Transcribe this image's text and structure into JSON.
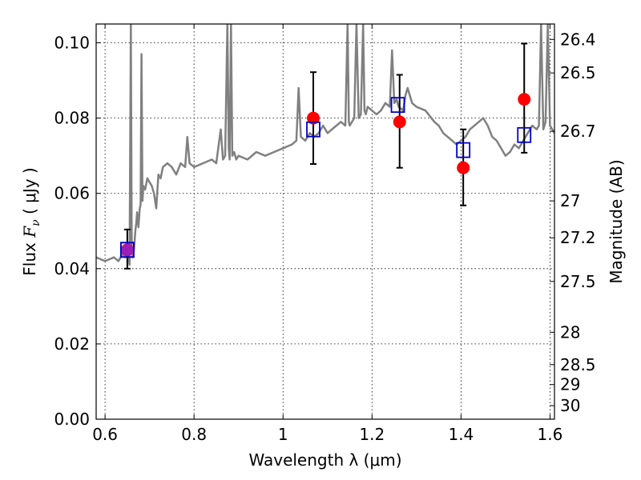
{
  "chart_data": {
    "type": "scatter",
    "title": "",
    "xlabel": "Wavelength  λ (μm)",
    "ylabel": "Flux  F_ν  ( μJy )",
    "ylabel_parts": {
      "pre": "Flux  ",
      "var": "F",
      "sub": "ν",
      "post": "  ( μJy )"
    },
    "y2label": "Magnitude (AB)",
    "xlim": [
      0.58,
      1.61
    ],
    "ylim": [
      0.0,
      0.105
    ],
    "grid": true,
    "x_ticks": [
      0.6,
      0.8,
      1.0,
      1.2,
      1.4,
      1.6
    ],
    "x_tick_labels": [
      "0.6",
      "0.8",
      "1",
      "1.2",
      "1.4",
      "1.6"
    ],
    "y_ticks": [
      0.0,
      0.02,
      0.04,
      0.06,
      0.08,
      0.1
    ],
    "y_tick_labels": [
      "0.00",
      "0.02",
      "0.04",
      "0.06",
      "0.08",
      "0.10"
    ],
    "y2_ticks": [
      {
        "label": "26.4",
        "flux": 0.1009
      },
      {
        "label": "26.5",
        "flux": 0.092
      },
      {
        "label": "26.7",
        "flux": 0.0765
      },
      {
        "label": "27",
        "flux": 0.058
      },
      {
        "label": "27.2",
        "flux": 0.0482
      },
      {
        "label": "27.5",
        "flux": 0.0366
      },
      {
        "label": "28",
        "flux": 0.0231
      },
      {
        "label": "28.5",
        "flux": 0.0145
      },
      {
        "label": "29",
        "flux": 0.0092
      },
      {
        "label": "30",
        "flux": 0.0036
      }
    ],
    "colors": {
      "spectrum": "#808080",
      "observed": "#ff0000",
      "model_box": "#0000cc",
      "error_bar": "#000000"
    },
    "series": [
      {
        "kind": "spectrum",
        "x": [
          0.58,
          0.6,
          0.62,
          0.63,
          0.64,
          0.645,
          0.65,
          0.655,
          0.658,
          0.66,
          0.662,
          0.665,
          0.668,
          0.67,
          0.672,
          0.675,
          0.678,
          0.68,
          0.682,
          0.684,
          0.686,
          0.69,
          0.695,
          0.7,
          0.705,
          0.71,
          0.715,
          0.72,
          0.725,
          0.73,
          0.74,
          0.75,
          0.76,
          0.77,
          0.78,
          0.785,
          0.79,
          0.8,
          0.82,
          0.84,
          0.85,
          0.86,
          0.865,
          0.87,
          0.875,
          0.878,
          0.88,
          0.883,
          0.886,
          0.89,
          0.895,
          0.9,
          0.92,
          0.94,
          0.96,
          0.98,
          1.0,
          1.02,
          1.03,
          1.035,
          1.04,
          1.05,
          1.06,
          1.07,
          1.08,
          1.09,
          1.095,
          1.1,
          1.11,
          1.12,
          1.13,
          1.14,
          1.145,
          1.148,
          1.15,
          1.155,
          1.16,
          1.165,
          1.17,
          1.175,
          1.18,
          1.183,
          1.186,
          1.19,
          1.2,
          1.21,
          1.22,
          1.23,
          1.24,
          1.245,
          1.25,
          1.255,
          1.26,
          1.27,
          1.275,
          1.28,
          1.29,
          1.3,
          1.32,
          1.34,
          1.35,
          1.36,
          1.37,
          1.38,
          1.39,
          1.4,
          1.41,
          1.42,
          1.44,
          1.45,
          1.46,
          1.47,
          1.48,
          1.49,
          1.5,
          1.51,
          1.52,
          1.53,
          1.54,
          1.55,
          1.56,
          1.57,
          1.575,
          1.58,
          1.585,
          1.59,
          1.595,
          1.6,
          1.605,
          1.61
        ],
        "y": [
          0.043,
          0.042,
          0.043,
          0.042,
          0.044,
          0.043,
          0.045,
          0.041,
          0.105,
          0.046,
          0.043,
          0.045,
          0.05,
          0.052,
          0.055,
          0.051,
          0.056,
          0.057,
          0.097,
          0.058,
          0.062,
          0.061,
          0.064,
          0.063,
          0.062,
          0.06,
          0.056,
          0.065,
          0.064,
          0.067,
          0.068,
          0.067,
          0.065,
          0.068,
          0.067,
          0.075,
          0.068,
          0.067,
          0.068,
          0.069,
          0.068,
          0.077,
          0.069,
          0.07,
          0.105,
          0.072,
          0.069,
          0.105,
          0.07,
          0.071,
          0.069,
          0.07,
          0.069,
          0.071,
          0.07,
          0.071,
          0.072,
          0.073,
          0.074,
          0.088,
          0.075,
          0.074,
          0.076,
          0.075,
          0.076,
          0.078,
          0.077,
          0.076,
          0.077,
          0.078,
          0.079,
          0.078,
          0.105,
          0.079,
          0.078,
          0.079,
          0.08,
          0.105,
          0.08,
          0.081,
          0.105,
          0.082,
          0.081,
          0.083,
          0.082,
          0.081,
          0.082,
          0.084,
          0.083,
          0.098,
          0.084,
          0.085,
          0.083,
          0.082,
          0.086,
          0.088,
          0.084,
          0.083,
          0.082,
          0.079,
          0.078,
          0.076,
          0.075,
          0.074,
          0.073,
          0.074,
          0.075,
          0.077,
          0.079,
          0.08,
          0.078,
          0.075,
          0.074,
          0.072,
          0.07,
          0.071,
          0.073,
          0.072,
          0.074,
          0.076,
          0.078,
          0.077,
          0.078,
          0.105,
          0.077,
          0.079,
          0.105,
          0.078,
          0.077,
          0.076
        ]
      },
      {
        "kind": "model",
        "marker": "open-square",
        "x": [
          0.65,
          1.068,
          1.258,
          1.405,
          1.542
        ],
        "y": [
          0.045,
          0.077,
          0.0835,
          0.0715,
          0.0755
        ]
      },
      {
        "kind": "observed",
        "marker": "filled-circle",
        "x": [
          0.65,
          1.068,
          1.262,
          1.405,
          1.542
        ],
        "y": [
          0.045,
          0.08,
          0.079,
          0.0668,
          0.085
        ],
        "yerr_low": [
          0.04,
          0.0678,
          0.0668,
          0.0568,
          0.0708
        ],
        "yerr_high": [
          0.0504,
          0.0922,
          0.0915,
          0.077,
          0.0998
        ]
      }
    ]
  }
}
